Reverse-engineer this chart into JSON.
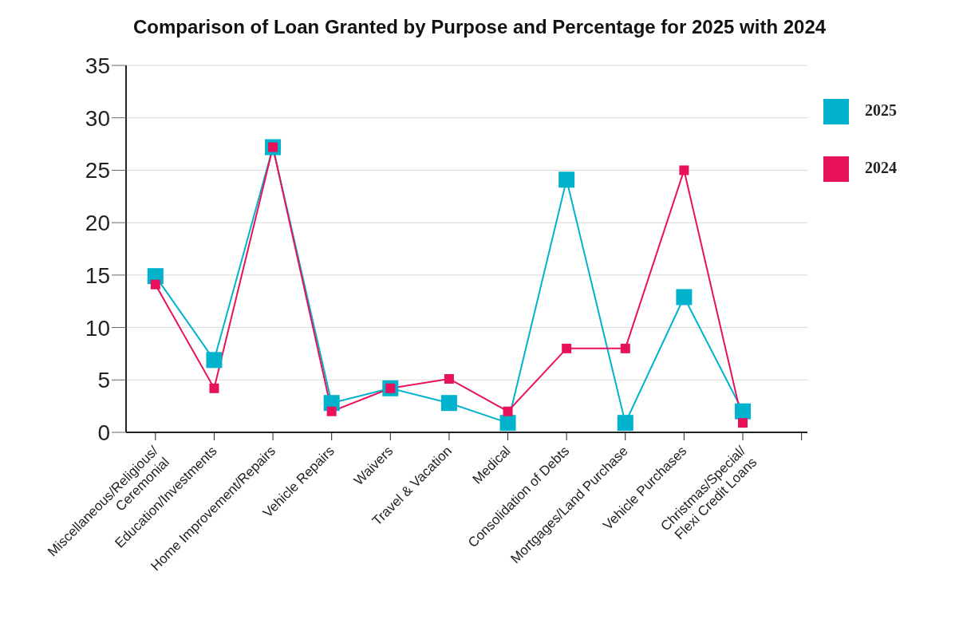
{
  "chart_data": {
    "type": "line",
    "title": "Comparison of Loan Granted by Purpose and Percentage for 2025 with 2024",
    "categories": [
      "Miscellaneous/Religious/ Ceremonial",
      "Education/Investments",
      "Home Improvement/Repairs",
      "Vehicle Repairs",
      "Waivers",
      "Travel & Vacation",
      "Medical",
      "Consolidation of Debts",
      "Mortgages/Land Purchase",
      "Vehicle Purchases",
      "Christmas/Special/ Flexi Credit Loans"
    ],
    "series": [
      {
        "name": "2025",
        "color": "#00b2cc",
        "values": [
          14.9,
          6.9,
          27.2,
          2.8,
          4.2,
          2.8,
          0.9,
          24.1,
          0.9,
          12.9,
          2.0
        ]
      },
      {
        "name": "2024",
        "color": "#e8125c",
        "values": [
          14.1,
          4.2,
          27.2,
          2.0,
          4.2,
          5.1,
          2.0,
          8.0,
          8.0,
          25.0,
          0.9
        ]
      }
    ],
    "ylim": [
      0,
      35
    ],
    "yticks": [
      0,
      5,
      10,
      15,
      20,
      25,
      30,
      35
    ],
    "grid": "y",
    "legend": "top right",
    "marker": "square",
    "line_style": "solid"
  }
}
